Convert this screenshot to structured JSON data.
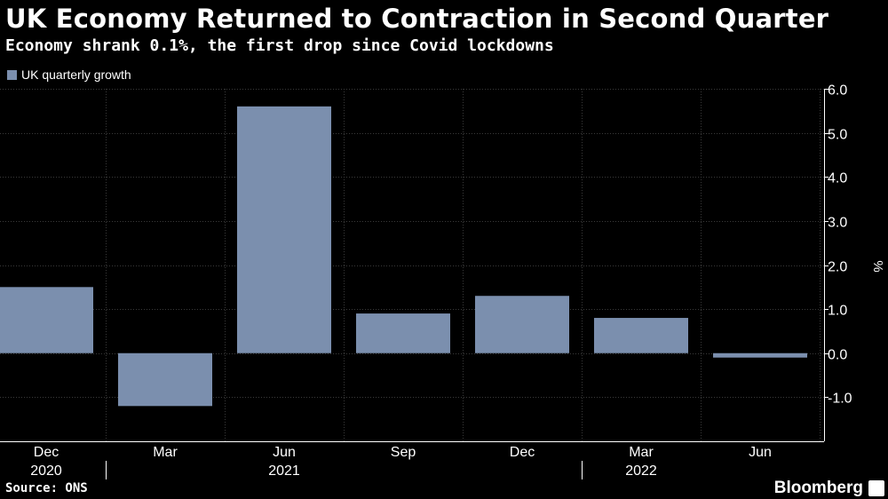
{
  "chart_data": {
    "type": "bar",
    "title": "UK Economy Returned to Contraction in Second Quarter",
    "subtitle": "Economy shrank 0.1%, the first drop since Covid lockdowns",
    "series": [
      {
        "name": "UK quarterly growth",
        "color": "#7b8fae",
        "values": [
          1.5,
          -1.2,
          5.6,
          0.9,
          1.3,
          0.8,
          -0.1
        ]
      }
    ],
    "categories": [
      "Dec",
      "Mar",
      "Jun",
      "Sep",
      "Dec",
      "Mar",
      "Jun"
    ],
    "year_labels": [
      {
        "label": "2020",
        "category_index": 0
      },
      {
        "label": "2021",
        "category_index": 2
      },
      {
        "label": "2022",
        "category_index": 5
      }
    ],
    "year_separators_after": [
      0,
      4
    ],
    "y_ticks": [
      6.0,
      5.0,
      4.0,
      3.0,
      2.0,
      1.0,
      0.0,
      -1.0
    ],
    "ylim": [
      -2.0,
      6.0
    ],
    "ylabel": "%",
    "yaxis_position": "right",
    "grid": true,
    "legend_position": "top-left",
    "source": "Source: ONS",
    "brand": "Bloomberg"
  },
  "style": {
    "background": "#000000",
    "grid_color": "#3a3a3a",
    "axis_color": "#ffffff",
    "bar_color": "#7b8fae",
    "text_color": "#ffffff"
  }
}
